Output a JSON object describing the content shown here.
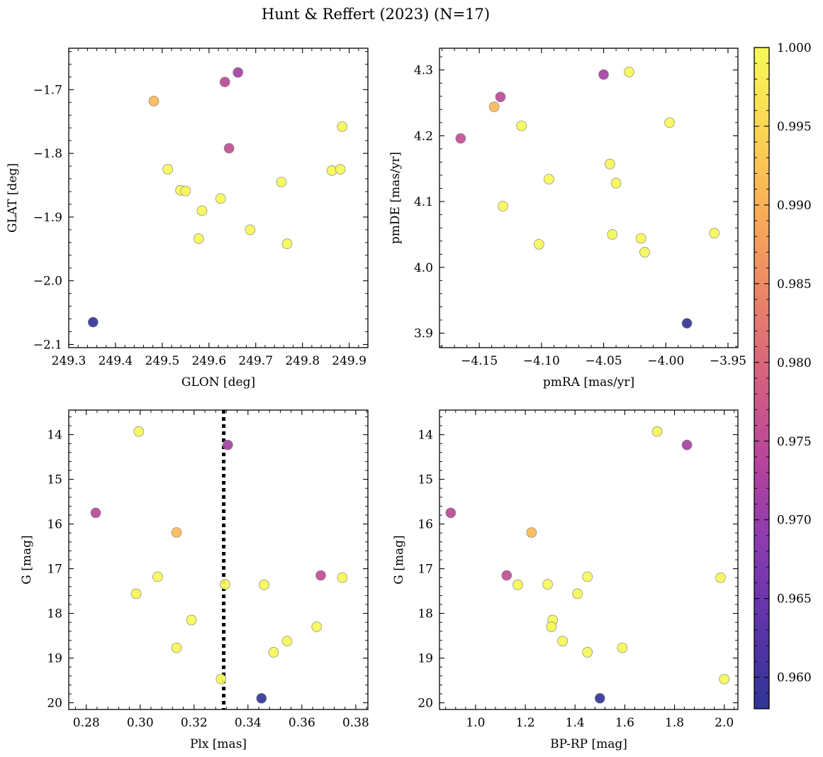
{
  "figure": {
    "suptitle": "Hunt & Reffert (2023) (N=17)"
  },
  "chart_data": [
    {
      "type": "scatter",
      "xlabel": "GLON [deg]",
      "ylabel": "GLAT [deg]",
      "xlim": [
        249.3,
        249.94
      ],
      "ylim": [
        -2.105,
        -1.635
      ],
      "y_inverted": false,
      "xticks": [
        249.3,
        249.4,
        249.5,
        249.6,
        249.7,
        249.8,
        249.9
      ],
      "xtick_labels": [
        "249.3",
        "249.4",
        "249.5",
        "249.6",
        "249.7",
        "249.8",
        "249.9"
      ],
      "yticks": [
        -1.7,
        -1.8,
        -1.9,
        -2.0,
        -2.1
      ],
      "ytick_labels": [
        "−1.7",
        "−1.8",
        "−1.9",
        "−2.0",
        "−2.1"
      ],
      "x": [
        249.885,
        249.662,
        249.634,
        249.482,
        249.643,
        249.512,
        249.863,
        249.881,
        249.539,
        249.55,
        249.755,
        249.625,
        249.585,
        249.688,
        249.578,
        249.767,
        249.352
      ],
      "y": [
        -1.758,
        -1.673,
        -1.688,
        -1.718,
        -1.792,
        -1.825,
        -1.827,
        -1.825,
        -1.858,
        -1.859,
        -1.845,
        -1.871,
        -1.89,
        -1.92,
        -1.934,
        -1.942,
        -2.065
      ]
    },
    {
      "type": "scatter",
      "xlabel": "pmRA [mas/yr]",
      "ylabel": "pmDE [mas/yr]",
      "xlim": [
        -4.182,
        -3.942
      ],
      "ylim": [
        3.878,
        4.333
      ],
      "y_inverted": false,
      "xticks": [
        -4.15,
        -4.1,
        -4.05,
        -4.0,
        -3.95
      ],
      "xtick_labels": [
        "−4.15",
        "−4.10",
        "−4.05",
        "−4.00",
        "−3.95"
      ],
      "yticks": [
        3.9,
        4.0,
        4.1,
        4.2,
        4.3
      ],
      "ytick_labels": [
        "3.9",
        "4.0",
        "4.1",
        "4.2",
        "4.3"
      ],
      "x": [
        -4.0295,
        -4.05,
        -4.133,
        -4.138,
        -4.165,
        -4.116,
        -3.997,
        -4.094,
        -4.045,
        -4.04,
        -4.131,
        -4.043,
        -4.02,
        -3.961,
        -4.017,
        -4.102,
        -3.983
      ],
      "y": [
        4.297,
        4.293,
        4.259,
        4.244,
        4.196,
        4.215,
        4.22,
        4.134,
        4.157,
        4.128,
        4.093,
        4.05,
        4.044,
        4.052,
        4.023,
        4.035,
        3.915
      ]
    },
    {
      "type": "scatter",
      "xlabel": "Plx [mas]",
      "ylabel": "G [mag]",
      "xlim": [
        0.2735,
        0.3845
      ],
      "ylim": [
        20.15,
        13.45
      ],
      "y_inverted": true,
      "xticks": [
        0.28,
        0.3,
        0.32,
        0.34,
        0.36,
        0.38
      ],
      "xtick_labels": [
        "0.28",
        "0.30",
        "0.32",
        "0.34",
        "0.36",
        "0.38"
      ],
      "yticks": [
        14,
        15,
        16,
        17,
        18,
        19,
        20
      ],
      "ytick_labels": [
        "14",
        "15",
        "16",
        "17",
        "18",
        "19",
        "20"
      ],
      "vline": 0.331,
      "x": [
        0.2995,
        0.3325,
        0.2835,
        0.3135,
        0.367,
        0.3065,
        0.375,
        0.2985,
        0.3315,
        0.346,
        0.319,
        0.3655,
        0.3135,
        0.3545,
        0.3495,
        0.33,
        0.345
      ],
      "y": [
        13.93,
        14.23,
        15.75,
        16.19,
        17.15,
        17.18,
        17.2,
        17.56,
        17.35,
        17.36,
        18.15,
        18.3,
        18.77,
        18.62,
        18.87,
        19.47,
        19.9
      ]
    },
    {
      "type": "scatter",
      "xlabel": "BP-RP [mag]",
      "ylabel": "G [mag]",
      "xlim": [
        0.855,
        2.055
      ],
      "ylim": [
        20.15,
        13.45
      ],
      "y_inverted": true,
      "xticks": [
        1.0,
        1.2,
        1.4,
        1.6,
        1.8,
        2.0
      ],
      "xtick_labels": [
        "1.0",
        "1.2",
        "1.4",
        "1.6",
        "1.8",
        "2.0"
      ],
      "yticks": [
        14,
        15,
        16,
        17,
        18,
        19,
        20
      ],
      "ytick_labels": [
        "14",
        "15",
        "16",
        "17",
        "18",
        "19",
        "20"
      ],
      "x": [
        1.73,
        1.85,
        0.9,
        1.225,
        1.125,
        1.45,
        1.985,
        1.41,
        1.29,
        1.17,
        1.31,
        1.305,
        1.59,
        1.35,
        1.45,
        2.0,
        1.5
      ],
      "y": [
        13.93,
        14.23,
        15.75,
        16.19,
        17.15,
        17.18,
        17.2,
        17.56,
        17.35,
        17.36,
        18.15,
        18.3,
        18.77,
        18.62,
        18.87,
        19.47,
        19.9
      ]
    }
  ],
  "star_probabilities": [
    0.9995,
    0.9718,
    0.9745,
    0.9912,
    0.9755,
    1.0,
    0.9995,
    0.9994,
    0.9994,
    0.9994,
    1.0,
    0.9999,
    0.9996,
    0.9998,
    0.9995,
    0.9998,
    0.9585
  ],
  "colorbar": {
    "vmin": 0.958,
    "vmax": 1.0,
    "ticks": [
      0.96,
      0.965,
      0.97,
      0.975,
      0.98,
      0.985,
      0.99,
      0.995,
      1.0
    ],
    "tick_labels": [
      "0.960",
      "0.965",
      "0.970",
      "0.975",
      "0.980",
      "0.985",
      "0.990",
      "0.995",
      "1.000"
    ],
    "colormap": "plasma",
    "stops": [
      "#2f3595",
      "#5b34a8",
      "#8b3bb0",
      "#b6449c",
      "#d4617f",
      "#ea8468",
      "#f9ad58",
      "#fbd553",
      "#f6fa57"
    ]
  },
  "style": {
    "marker_edge": "#888888",
    "marker_alpha": 0.92,
    "vline_color": "#000000"
  }
}
